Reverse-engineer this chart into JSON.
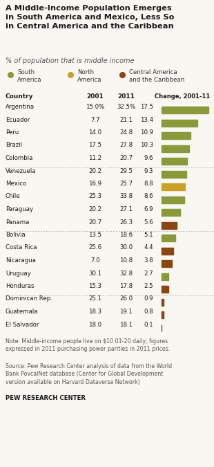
{
  "title": "A Middle-Income Population Emerges\nin South America and Mexico, Less So\nin Central America and the Caribbean",
  "subtitle": "% of population that is middle income",
  "legend": [
    {
      "label": "South\nAmerica",
      "color": "#8a9a3a"
    },
    {
      "label": "North\nAmerica",
      "color": "#c9a227"
    },
    {
      "label": "Central America\nand the Caribbean",
      "color": "#8b4513"
    }
  ],
  "col_headers": [
    "Country",
    "2001",
    "2011",
    "Change, 2001-11"
  ],
  "countries": [
    {
      "name": "Argentina",
      "v2001": "15.0%",
      "v2011": "32.5%",
      "change": 17.5,
      "color": "#8a9a3a",
      "group": 1
    },
    {
      "name": "Ecuador",
      "v2001": "7.7",
      "v2011": "21.1",
      "change": 13.4,
      "color": "#8a9a3a",
      "group": 1
    },
    {
      "name": "Peru",
      "v2001": "14.0",
      "v2011": "24.8",
      "change": 10.9,
      "color": "#8a9a3a",
      "group": 1
    },
    {
      "name": "Brazil",
      "v2001": "17.5",
      "v2011": "27.8",
      "change": 10.3,
      "color": "#8a9a3a",
      "group": 1
    },
    {
      "name": "Colombia",
      "v2001": "11.2",
      "v2011": "20.7",
      "change": 9.6,
      "color": "#8a9a3a",
      "group": 1
    },
    {
      "name": "Venezuela",
      "v2001": "20.2",
      "v2011": "29.5",
      "change": 9.3,
      "color": "#8a9a3a",
      "group": 2
    },
    {
      "name": "Mexico",
      "v2001": "16.9",
      "v2011": "25.7",
      "change": 8.8,
      "color": "#c9a227",
      "group": 2
    },
    {
      "name": "Chile",
      "v2001": "25.3",
      "v2011": "33.8",
      "change": 8.6,
      "color": "#8a9a3a",
      "group": 2
    },
    {
      "name": "Paraguay",
      "v2001": "20.2",
      "v2011": "27.1",
      "change": 6.9,
      "color": "#8a9a3a",
      "group": 2
    },
    {
      "name": "Panama",
      "v2001": "20.7",
      "v2011": "26.3",
      "change": 5.6,
      "color": "#8b4513",
      "group": 2
    },
    {
      "name": "Bolivia",
      "v2001": "13.5",
      "v2011": "18.6",
      "change": 5.1,
      "color": "#8a9a3a",
      "group": 3
    },
    {
      "name": "Costa Rica",
      "v2001": "25.6",
      "v2011": "30.0",
      "change": 4.4,
      "color": "#8b4513",
      "group": 3
    },
    {
      "name": "Nicaragua",
      "v2001": "7.0",
      "v2011": "10.8",
      "change": 3.8,
      "color": "#8b4513",
      "group": 3
    },
    {
      "name": "Uruguay",
      "v2001": "30.1",
      "v2011": "32.8",
      "change": 2.7,
      "color": "#8a9a3a",
      "group": 3
    },
    {
      "name": "Honduras",
      "v2001": "15.3",
      "v2011": "17.8",
      "change": 2.5,
      "color": "#8b4513",
      "group": 3
    },
    {
      "name": "Dominican Rep.",
      "v2001": "25.1",
      "v2011": "26.0",
      "change": 0.9,
      "color": "#8b4513",
      "group": 4
    },
    {
      "name": "Guatemala",
      "v2001": "18.3",
      "v2011": "19.1",
      "change": 0.8,
      "color": "#8b4513",
      "group": 4
    },
    {
      "name": "El Salvador",
      "v2001": "18.0",
      "v2011": "18.1",
      "change": 0.1,
      "color": "#8b4513",
      "group": 4
    }
  ],
  "note": "Note: Middle-income people live on $10.01-20 daily; figures\nexpressed in 2011 purchasing power parities in 2011 prices.",
  "source": "Source: Pew Research Center analysis of data from the World\nBank PovcalNet database (Center for Global Development\nversion available on Harvard Dataverse Network)",
  "pew": "PEW RESEARCH CENTER",
  "bg_color": "#f9f7f2",
  "bar_max": 17.5
}
